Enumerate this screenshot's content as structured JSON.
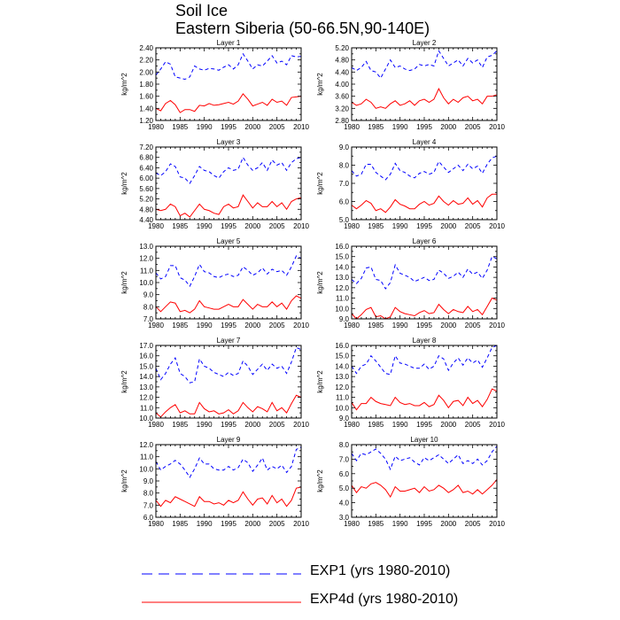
{
  "chart_data": {
    "type": "line",
    "title": "Soil Ice",
    "subtitle": "Eastern Siberia (50-66.5N,90-140E)",
    "x": [
      1980,
      1981,
      1982,
      1983,
      1984,
      1985,
      1986,
      1987,
      1988,
      1989,
      1990,
      1991,
      1992,
      1993,
      1994,
      1995,
      1996,
      1997,
      1998,
      1999,
      2000,
      2001,
      2002,
      2003,
      2004,
      2005,
      2006,
      2007,
      2008,
      2009,
      2010
    ],
    "xlim": [
      1980,
      2010
    ],
    "xticks": [
      "1980",
      "1985",
      "1990",
      "1995",
      "2000",
      "2005",
      "2010"
    ],
    "series_styles": [
      {
        "name": "EXP1 (yrs 1980-2010)",
        "color": "#0000ff",
        "dash": "dashed"
      },
      {
        "name": "EXP4d (yrs 1980-2010)",
        "color": "#ff0000",
        "dash": "solid"
      }
    ],
    "panels": [
      {
        "title": "Layer 1",
        "ylabel": "kg/m^2",
        "ylim": [
          1.2,
          2.4
        ],
        "yticks": [
          "1.20",
          "1.40",
          "1.60",
          "1.80",
          "2.00",
          "2.20",
          "2.40"
        ],
        "series": [
          {
            "name": "EXP1",
            "values": [
              1.95,
              2.05,
              2.17,
              2.13,
              1.92,
              1.9,
              1.88,
              1.92,
              2.1,
              2.05,
              2.03,
              2.06,
              2.05,
              2.03,
              2.08,
              2.12,
              2.05,
              2.12,
              2.3,
              2.18,
              2.05,
              2.12,
              2.1,
              2.18,
              2.27,
              2.15,
              2.18,
              2.12,
              2.27,
              2.25,
              2.26
            ]
          },
          {
            "name": "EXP4d",
            "values": [
              1.4,
              1.36,
              1.48,
              1.53,
              1.46,
              1.33,
              1.38,
              1.38,
              1.35,
              1.45,
              1.44,
              1.48,
              1.45,
              1.46,
              1.48,
              1.5,
              1.47,
              1.52,
              1.64,
              1.55,
              1.44,
              1.47,
              1.5,
              1.45,
              1.55,
              1.5,
              1.52,
              1.45,
              1.58,
              1.59,
              1.6
            ]
          }
        ]
      },
      {
        "title": "Layer 2",
        "ylabel": "kg/m^2",
        "ylim": [
          2.8,
          5.2
        ],
        "yticks": [
          "2.80",
          "3.20",
          "3.60",
          "4.00",
          "4.40",
          "4.80",
          "5.20"
        ],
        "series": [
          {
            "name": "EXP1",
            "values": [
              4.55,
              4.45,
              4.55,
              4.75,
              4.45,
              4.4,
              4.2,
              4.5,
              4.8,
              4.55,
              4.6,
              4.5,
              4.45,
              4.5,
              4.65,
              4.6,
              4.65,
              4.6,
              5.1,
              4.85,
              4.6,
              4.7,
              4.8,
              4.6,
              4.85,
              4.7,
              4.8,
              4.55,
              4.9,
              4.95,
              5.1
            ]
          },
          {
            "name": "EXP4d",
            "values": [
              3.4,
              3.3,
              3.35,
              3.5,
              3.4,
              3.2,
              3.25,
              3.2,
              3.35,
              3.45,
              3.3,
              3.35,
              3.45,
              3.3,
              3.45,
              3.5,
              3.4,
              3.5,
              3.85,
              3.55,
              3.35,
              3.5,
              3.4,
              3.55,
              3.6,
              3.45,
              3.5,
              3.35,
              3.6,
              3.6,
              3.65
            ]
          }
        ]
      },
      {
        "title": "Layer 3",
        "ylabel": "kg/m^2",
        "ylim": [
          4.4,
          7.2
        ],
        "yticks": [
          "4.40",
          "4.80",
          "5.20",
          "5.60",
          "6.00",
          "6.40",
          "6.80",
          "7.20"
        ],
        "series": [
          {
            "name": "EXP1",
            "values": [
              6.2,
              6.1,
              6.25,
              6.55,
              6.45,
              6.05,
              6.0,
              5.8,
              6.1,
              6.45,
              6.3,
              6.25,
              6.1,
              6.0,
              6.25,
              6.4,
              6.3,
              6.35,
              6.8,
              6.5,
              6.3,
              6.4,
              6.6,
              6.3,
              6.7,
              6.5,
              6.6,
              6.3,
              6.6,
              6.75,
              6.8
            ]
          },
          {
            "name": "EXP4d",
            "values": [
              4.8,
              4.75,
              4.8,
              5.0,
              4.9,
              4.55,
              4.65,
              4.5,
              4.75,
              5.0,
              4.8,
              4.75,
              4.65,
              4.6,
              4.9,
              5.0,
              4.85,
              4.9,
              5.35,
              5.1,
              4.85,
              5.05,
              4.9,
              4.9,
              5.1,
              4.9,
              5.05,
              4.8,
              5.1,
              5.2,
              5.25
            ]
          }
        ]
      },
      {
        "title": "Layer 4",
        "ylabel": "kg/m^2",
        "ylim": [
          5.0,
          9.0
        ],
        "yticks": [
          "5.0",
          "6.0",
          "7.0",
          "8.0",
          "9.0"
        ],
        "series": [
          {
            "name": "EXP1",
            "values": [
              7.7,
              7.4,
              7.5,
              8.05,
              8.05,
              7.6,
              7.4,
              7.2,
              7.5,
              8.1,
              7.7,
              7.6,
              7.4,
              7.3,
              7.55,
              7.65,
              7.5,
              7.6,
              8.2,
              7.9,
              7.6,
              7.8,
              8.0,
              7.7,
              8.05,
              7.8,
              7.95,
              7.55,
              8.05,
              8.4,
              8.5
            ]
          },
          {
            "name": "EXP4d",
            "values": [
              5.8,
              5.6,
              5.8,
              6.05,
              5.9,
              5.5,
              5.6,
              5.4,
              5.7,
              6.1,
              5.85,
              5.75,
              5.6,
              5.6,
              5.85,
              6.0,
              5.8,
              5.9,
              6.3,
              6.0,
              5.8,
              6.05,
              5.85,
              5.9,
              6.2,
              5.85,
              6.05,
              5.7,
              6.2,
              6.4,
              6.4
            ]
          }
        ]
      },
      {
        "title": "Layer 5",
        "ylabel": "kg/m^2",
        "ylim": [
          7.0,
          13.0
        ],
        "yticks": [
          "7.0",
          "8.0",
          "9.0",
          "10.0",
          "11.0",
          "12.0",
          "13.0"
        ],
        "series": [
          {
            "name": "EXP1",
            "values": [
              10.8,
              10.3,
              10.5,
              11.4,
              11.4,
              10.4,
              10.2,
              9.7,
              10.5,
              11.5,
              10.9,
              10.8,
              10.5,
              10.4,
              10.6,
              10.7,
              10.5,
              10.6,
              11.3,
              11.0,
              10.6,
              10.8,
              11.2,
              10.7,
              11.1,
              10.9,
              11.0,
              10.6,
              11.3,
              12.2,
              12.0
            ]
          },
          {
            "name": "EXP4d",
            "values": [
              8.0,
              7.6,
              8.0,
              8.4,
              8.3,
              7.6,
              7.7,
              7.5,
              7.8,
              8.5,
              8.0,
              7.9,
              7.8,
              7.8,
              8.0,
              8.2,
              8.0,
              8.0,
              8.6,
              8.2,
              7.8,
              8.2,
              8.0,
              8.0,
              8.4,
              8.0,
              8.3,
              7.8,
              8.5,
              8.9,
              8.7
            ]
          }
        ]
      },
      {
        "title": "Layer 6",
        "ylabel": "kg/m^2",
        "ylim": [
          9.0,
          16.0
        ],
        "yticks": [
          "9.0",
          "10.0",
          "11.0",
          "12.0",
          "13.0",
          "14.0",
          "15.0",
          "16.0"
        ],
        "series": [
          {
            "name": "EXP1",
            "values": [
              12.8,
              12.4,
              12.9,
              13.9,
              14.0,
              12.8,
              12.7,
              11.9,
              12.5,
              14.2,
              13.4,
              13.2,
              13.0,
              12.6,
              12.8,
              13.0,
              12.7,
              12.8,
              13.7,
              13.4,
              12.9,
              13.1,
              13.5,
              13.0,
              13.8,
              13.3,
              13.5,
              12.9,
              13.7,
              15.0,
              14.8
            ]
          },
          {
            "name": "EXP4d",
            "values": [
              9.5,
              9.0,
              9.4,
              9.9,
              10.1,
              9.2,
              9.3,
              9.0,
              9.2,
              10.1,
              9.7,
              9.5,
              9.4,
              9.3,
              9.6,
              9.8,
              9.5,
              9.6,
              10.4,
              9.9,
              9.5,
              9.9,
              9.7,
              9.6,
              10.2,
              9.7,
              9.9,
              9.4,
              10.2,
              11.0,
              10.8
            ]
          }
        ]
      },
      {
        "title": "Layer 7",
        "ylabel": "kg/m^2",
        "ylim": [
          10.0,
          17.0
        ],
        "yticks": [
          "10.0",
          "11.0",
          "12.0",
          "13.0",
          "14.0",
          "15.0",
          "16.0",
          "17.0"
        ],
        "series": [
          {
            "name": "EXP1",
            "values": [
              14.8,
              13.7,
              14.3,
              15.2,
              15.8,
              14.3,
              14.0,
              13.4,
              13.5,
              15.7,
              15.0,
              14.8,
              14.4,
              14.2,
              14.0,
              14.4,
              14.1,
              14.3,
              15.5,
              15.0,
              14.2,
              14.7,
              15.2,
              14.6,
              15.2,
              14.8,
              15.0,
              14.3,
              15.4,
              16.8,
              16.6
            ]
          },
          {
            "name": "EXP4d",
            "values": [
              10.5,
              10.1,
              10.6,
              11.0,
              11.3,
              10.5,
              10.7,
              10.4,
              10.4,
              11.5,
              10.9,
              10.6,
              10.7,
              10.4,
              10.5,
              10.8,
              10.4,
              10.7,
              11.5,
              11.0,
              10.6,
              11.1,
              10.9,
              10.6,
              11.5,
              10.7,
              11.0,
              10.5,
              11.4,
              12.2,
              12.0
            ]
          }
        ]
      },
      {
        "title": "Layer 8",
        "ylabel": "kg/m^2",
        "ylim": [
          9.0,
          16.0
        ],
        "yticks": [
          "9.0",
          "10.0",
          "11.0",
          "12.0",
          "13.0",
          "14.0",
          "15.0",
          "16.0"
        ],
        "series": [
          {
            "name": "EXP1",
            "values": [
              14.0,
              13.3,
              14.0,
              14.2,
              15.0,
              14.5,
              13.9,
              13.3,
              13.2,
              15.0,
              14.3,
              14.2,
              14.0,
              13.8,
              13.8,
              14.2,
              13.7,
              14.0,
              15.0,
              14.7,
              13.6,
              14.3,
              14.8,
              14.1,
              14.8,
              14.3,
              14.6,
              13.9,
              14.8,
              15.8,
              16.0
            ]
          },
          {
            "name": "EXP4d",
            "values": [
              10.5,
              9.8,
              10.4,
              10.4,
              11.0,
              10.6,
              10.4,
              10.3,
              10.2,
              11.0,
              10.5,
              10.3,
              10.4,
              10.2,
              10.2,
              10.5,
              10.1,
              10.3,
              11.2,
              10.7,
              10.0,
              10.6,
              10.7,
              10.2,
              11.0,
              10.4,
              10.7,
              10.1,
              10.8,
              11.8,
              11.6
            ]
          }
        ]
      },
      {
        "title": "Layer 9",
        "ylabel": "kg/m^2",
        "ylim": [
          6.0,
          12.0
        ],
        "yticks": [
          "6.0",
          "7.0",
          "8.0",
          "9.0",
          "10.0",
          "11.0",
          "12.0"
        ],
        "series": [
          {
            "name": "EXP1",
            "values": [
              10.6,
              9.9,
              10.2,
              10.4,
              10.7,
              10.4,
              9.9,
              9.3,
              10.0,
              10.9,
              10.4,
              10.4,
              10.0,
              9.9,
              9.9,
              10.2,
              9.9,
              10.1,
              10.8,
              10.5,
              9.8,
              10.3,
              10.9,
              9.9,
              10.2,
              10.0,
              10.3,
              9.7,
              10.2,
              11.6,
              11.8
            ]
          },
          {
            "name": "EXP4d",
            "values": [
              7.4,
              6.9,
              7.4,
              7.2,
              7.7,
              7.5,
              7.3,
              7.1,
              6.9,
              7.7,
              7.3,
              7.3,
              7.1,
              7.2,
              7.0,
              7.4,
              7.2,
              7.4,
              8.1,
              7.5,
              7.0,
              7.5,
              7.6,
              7.1,
              7.8,
              7.2,
              7.5,
              6.9,
              7.4,
              8.4,
              8.5
            ]
          }
        ]
      },
      {
        "title": "Layer 10",
        "ylabel": "kg/m^2",
        "ylim": [
          3.0,
          8.0
        ],
        "yticks": [
          "3.0",
          "4.0",
          "5.0",
          "6.0",
          "7.0",
          "8.0"
        ],
        "series": [
          {
            "name": "EXP1",
            "values": [
              7.4,
              6.9,
              7.4,
              7.3,
              7.5,
              7.7,
              7.4,
              7.0,
              6.3,
              7.2,
              6.9,
              7.0,
              7.1,
              6.8,
              6.6,
              7.1,
              6.9,
              7.1,
              7.3,
              7.0,
              6.7,
              7.0,
              7.3,
              6.7,
              6.9,
              6.7,
              7.0,
              6.6,
              6.9,
              7.5,
              7.9
            ]
          },
          {
            "name": "EXP4d",
            "values": [
              5.2,
              4.7,
              5.1,
              5.0,
              5.3,
              5.4,
              5.2,
              4.9,
              4.4,
              5.1,
              4.8,
              4.8,
              4.9,
              5.0,
              4.7,
              5.1,
              4.8,
              4.9,
              5.2,
              5.0,
              4.7,
              4.9,
              5.2,
              4.7,
              4.8,
              4.6,
              4.9,
              4.6,
              4.9,
              5.2,
              5.6
            ]
          }
        ]
      }
    ]
  }
}
